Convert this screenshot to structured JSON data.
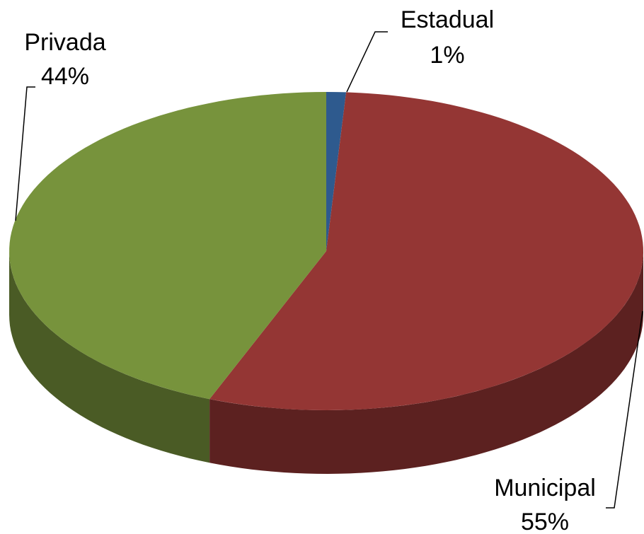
{
  "chart_data": {
    "type": "pie3d",
    "categories": [
      "Estadual",
      "Municipal",
      "Privada"
    ],
    "values": [
      1,
      55,
      44
    ],
    "value_labels": [
      "1%",
      "55%",
      "44%"
    ],
    "colors": [
      "#2e5a8e",
      "#943634",
      "#77933c"
    ]
  }
}
